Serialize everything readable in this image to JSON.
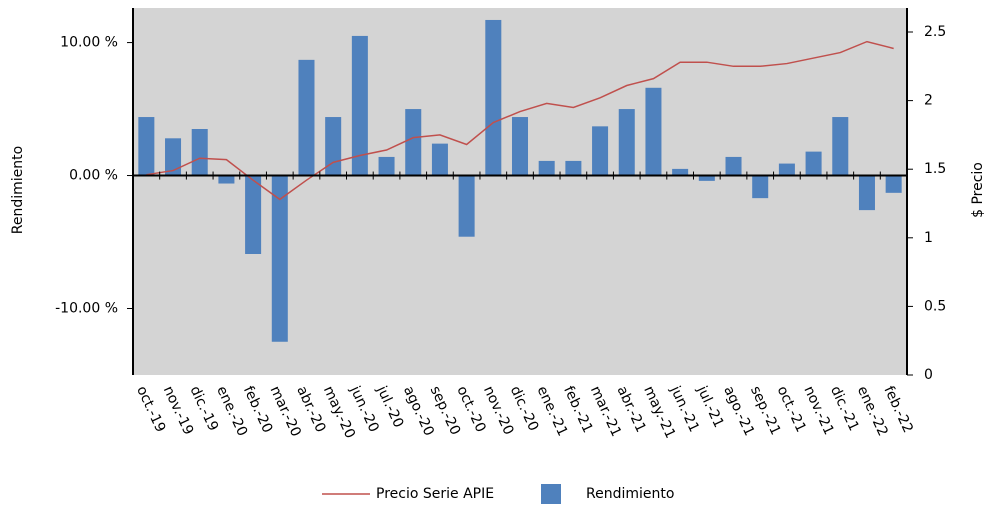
{
  "chart_data": {
    "type": "bar-line",
    "y_label": "Rendimiento",
    "y2_label": "$ Precio",
    "categories": [
      "oct.-19",
      "nov.-19",
      "dic.-19",
      "ene.-20",
      "feb.-20",
      "mar.-20",
      "abr.-20",
      "may.-20",
      "jun.-20",
      "jul.-20",
      "ago.-20",
      "sep.-20",
      "oct.-20",
      "nov.-20",
      "dic.-20",
      "ene.-21",
      "feb.-21",
      "mar.-21",
      "abr.-21",
      "may.-21",
      "jun.-21",
      "jul.-21",
      "ago.-21",
      "sep.-21",
      "oct.-21",
      "nov.-21",
      "dic.-21",
      "ene.-22",
      "feb.-22"
    ],
    "series": [
      {
        "name": "Precio Serie APIE",
        "color": "#c0504d",
        "kind": "line",
        "axis": "y2",
        "values": [
          1.46,
          1.49,
          1.58,
          1.57,
          1.42,
          1.28,
          1.42,
          1.55,
          1.6,
          1.64,
          1.73,
          1.75,
          1.68,
          1.84,
          1.92,
          1.98,
          1.95,
          2.02,
          2.11,
          2.16,
          2.28,
          2.28,
          2.25,
          2.25,
          2.27,
          2.31,
          2.35,
          2.43,
          2.38
        ]
      },
      {
        "name": "Rendimiento",
        "color": "#4f81bd",
        "kind": "bar",
        "values": [
          4.4,
          2.8,
          3.5,
          -0.6,
          -5.9,
          -12.5,
          8.7,
          4.4,
          10.5,
          1.4,
          5.0,
          2.4,
          -4.6,
          11.7,
          4.4,
          1.1,
          1.1,
          3.7,
          5.0,
          6.6,
          0.5,
          -0.4,
          1.4,
          -1.7,
          0.9,
          1.8,
          4.4,
          -2.6,
          -1.3
        ]
      }
    ],
    "ylim": [
      -15,
      12.6
    ],
    "yticks": [
      {
        "value": -10,
        "label": "-10.00 %"
      },
      {
        "value": 0,
        "label": "0.00 %"
      },
      {
        "value": 10,
        "label": "10.00 %"
      }
    ],
    "y2lim": [
      0,
      2.675
    ],
    "y2ticks": [
      0,
      0.5,
      1,
      1.5,
      2,
      2.5
    ],
    "legend": "bottom"
  }
}
